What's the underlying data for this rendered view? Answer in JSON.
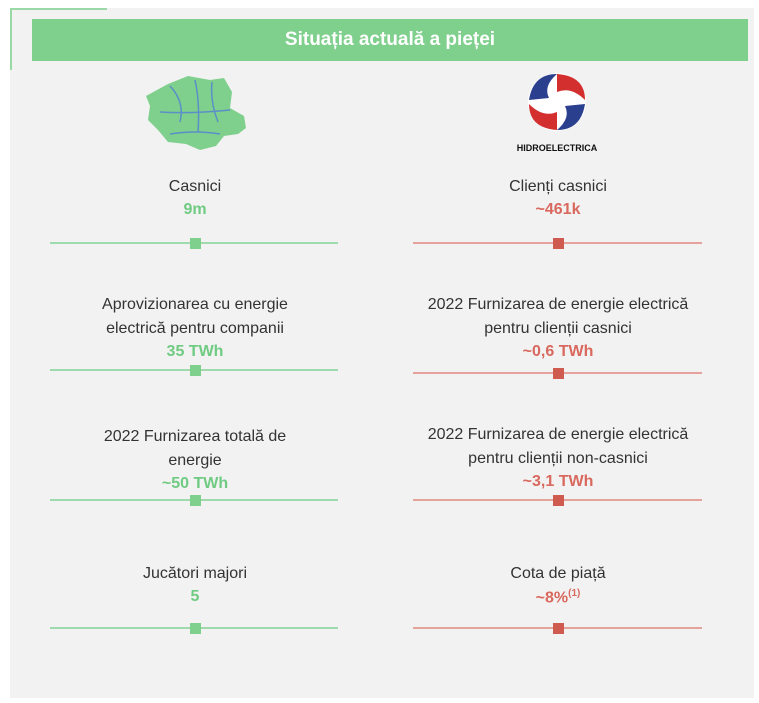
{
  "header": {
    "title": "Situația actuală a pieței"
  },
  "right_logo": {
    "text": "HIDROELECTRICA"
  },
  "left": {
    "items": [
      {
        "label": [
          "Casnici"
        ],
        "value": "9m"
      },
      {
        "label": [
          "Aprovizionarea cu energie",
          "electrică pentru companii"
        ],
        "value": "35 TWh"
      },
      {
        "label": [
          "2022 Furnizarea totală de",
          "energie"
        ],
        "value": "~50 TWh"
      },
      {
        "label": [
          "Jucători majori"
        ],
        "value": "5"
      }
    ]
  },
  "right": {
    "items": [
      {
        "label": [
          "Clienți casnici"
        ],
        "value": "~461k"
      },
      {
        "label": [
          "2022 Furnizarea de energie electrică",
          "pentru clienții casnici"
        ],
        "value": "~0,6 TWh"
      },
      {
        "label": [
          "2022 Furnizarea de energie electrică",
          "pentru clienții non-casnici"
        ],
        "value": "~3,1 TWh"
      },
      {
        "label": [
          "Cota de piață"
        ],
        "value": "~8%",
        "note": "(1)"
      }
    ]
  }
}
